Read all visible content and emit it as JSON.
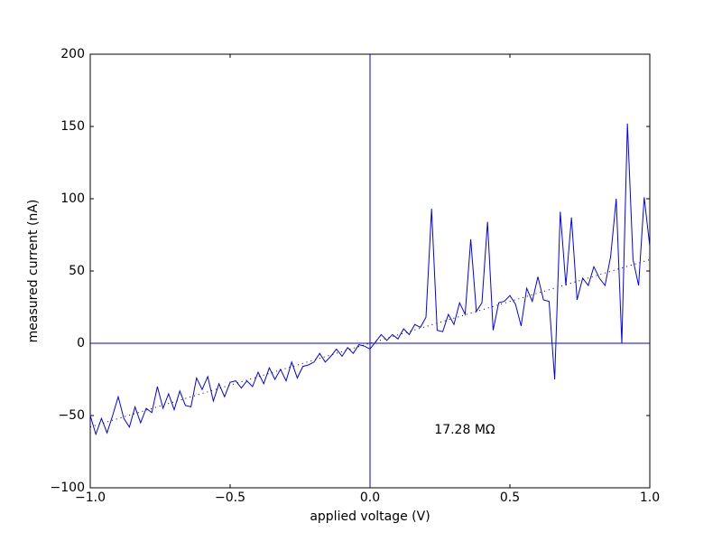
{
  "chart_data": {
    "type": "line",
    "xlabel": "applied voltage (V)",
    "ylabel": "measured current (nA)",
    "xlim": [
      -1,
      1
    ],
    "ylim": [
      -100,
      200
    ],
    "xticks": [
      {
        "value": -1,
        "label": "−1.0"
      },
      {
        "value": -0.5,
        "label": "−0.5"
      },
      {
        "value": 0,
        "label": "0.0"
      },
      0.5,
      {
        "value": 1,
        "label": "1.0"
      }
    ],
    "yticks": [
      {
        "value": -100,
        "label": "−100"
      },
      {
        "value": -50,
        "label": "−50"
      },
      0,
      50,
      100,
      150,
      200
    ],
    "axhline": 0,
    "axvline": 0,
    "axline_color": "#0000ff",
    "series": [
      {
        "color": "#0000ff",
        "style": "solid",
        "x": [
          -1,
          -0.98,
          -0.96,
          -0.94,
          -0.92,
          -0.9,
          -0.88,
          -0.86,
          -0.84,
          -0.82,
          -0.8,
          -0.78,
          -0.76,
          -0.74,
          -0.72,
          -0.7,
          -0.68,
          -0.66,
          -0.64,
          -0.62,
          -0.6,
          -0.58,
          -0.56,
          -0.54,
          -0.52,
          -0.5,
          -0.48,
          -0.46,
          -0.44,
          -0.42,
          -0.4,
          -0.38,
          -0.36,
          -0.34,
          -0.32,
          -0.3,
          -0.28,
          -0.26,
          -0.24,
          -0.22,
          -0.2,
          -0.18,
          -0.16,
          -0.14,
          -0.12,
          -0.1,
          -0.08,
          -0.06,
          -0.04,
          -0.02,
          0,
          0.02,
          0.04,
          0.06,
          0.08,
          0.1,
          0.12,
          0.14,
          0.16,
          0.18,
          0.2,
          0.22,
          0.24,
          0.26,
          0.28,
          0.3,
          0.32,
          0.34,
          0.36,
          0.38,
          0.4,
          0.42,
          0.44,
          0.46,
          0.48,
          0.5,
          0.52,
          0.54,
          0.56,
          0.58,
          0.6,
          0.62,
          0.64,
          0.66,
          0.68,
          0.7,
          0.72,
          0.74,
          0.76,
          0.78,
          0.8,
          0.82,
          0.84,
          0.86,
          0.88,
          0.9,
          0.92,
          0.94,
          0.96,
          0.98,
          1
        ],
        "values": [
          -50,
          -63,
          -52,
          -62,
          -50,
          -37,
          -52,
          -58,
          -44,
          -55,
          -45,
          -48,
          -30,
          -45,
          -35,
          -46,
          -33,
          -43,
          -44,
          -24,
          -32,
          -23,
          -40,
          -28,
          -37,
          -27,
          -26,
          -31,
          -26,
          -30,
          -20,
          -28,
          -17,
          -25,
          -18,
          -26,
          -13,
          -24,
          -16,
          -15,
          -13,
          -7,
          -13,
          -9,
          -4,
          -9,
          -3,
          -7,
          -1,
          -2,
          -4,
          1,
          6,
          2,
          6,
          3,
          10,
          6,
          13,
          11,
          18,
          93,
          9,
          8,
          20,
          13,
          28,
          20,
          72,
          22,
          28,
          84,
          9,
          28,
          29,
          33,
          27,
          12,
          38,
          29,
          46,
          30,
          29,
          -25,
          91,
          40,
          87,
          30,
          45,
          40,
          53,
          45,
          40,
          60,
          100,
          0,
          152,
          58,
          40,
          101,
          67
        ]
      },
      {
        "color": "#000000",
        "style": "dotted",
        "x": [
          -1,
          1
        ],
        "values": [
          -57.87,
          57.87
        ]
      }
    ],
    "annotations": [
      {
        "text": "17.28 MΩ",
        "x": 0.23,
        "y": -60
      }
    ]
  }
}
